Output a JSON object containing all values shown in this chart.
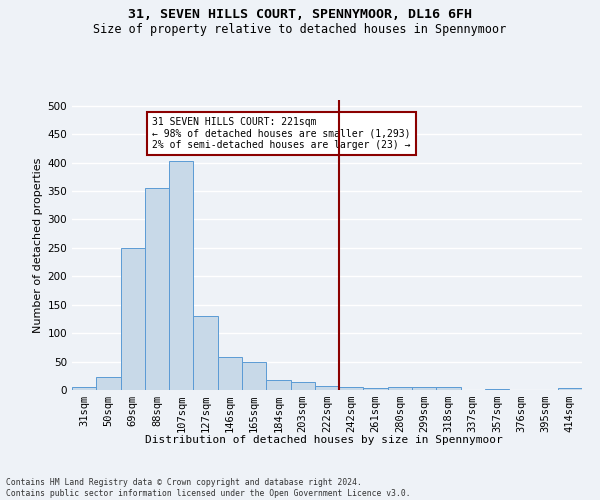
{
  "title": "31, SEVEN HILLS COURT, SPENNYMOOR, DL16 6FH",
  "subtitle": "Size of property relative to detached houses in Spennymoor",
  "xlabel": "Distribution of detached houses by size in Spennymoor",
  "ylabel": "Number of detached properties",
  "footnote": "Contains HM Land Registry data © Crown copyright and database right 2024.\nContains public sector information licensed under the Open Government Licence v3.0.",
  "bar_labels": [
    "31sqm",
    "50sqm",
    "69sqm",
    "88sqm",
    "107sqm",
    "127sqm",
    "146sqm",
    "165sqm",
    "184sqm",
    "203sqm",
    "222sqm",
    "242sqm",
    "261sqm",
    "280sqm",
    "299sqm",
    "318sqm",
    "337sqm",
    "357sqm",
    "376sqm",
    "395sqm",
    "414sqm"
  ],
  "bar_values": [
    6,
    23,
    250,
    355,
    402,
    130,
    58,
    49,
    18,
    14,
    7,
    5,
    4,
    6,
    6,
    5,
    0,
    2,
    0,
    0,
    3
  ],
  "bar_color": "#c8d9e8",
  "bar_edgecolor": "#5b9bd5",
  "vline_x": 10.5,
  "vline_color": "#8b0000",
  "annotation_text": "31 SEVEN HILLS COURT: 221sqm\n← 98% of detached houses are smaller (1,293)\n2% of semi-detached houses are larger (23) →",
  "ylim": [
    0,
    510
  ],
  "yticks": [
    0,
    50,
    100,
    150,
    200,
    250,
    300,
    350,
    400,
    450,
    500
  ],
  "bg_color": "#eef2f7",
  "grid_color": "#ffffff",
  "title_fontsize": 9.5,
  "subtitle_fontsize": 8.5,
  "axis_label_fontsize": 8,
  "tick_fontsize": 7.5,
  "annot_fontsize": 7
}
